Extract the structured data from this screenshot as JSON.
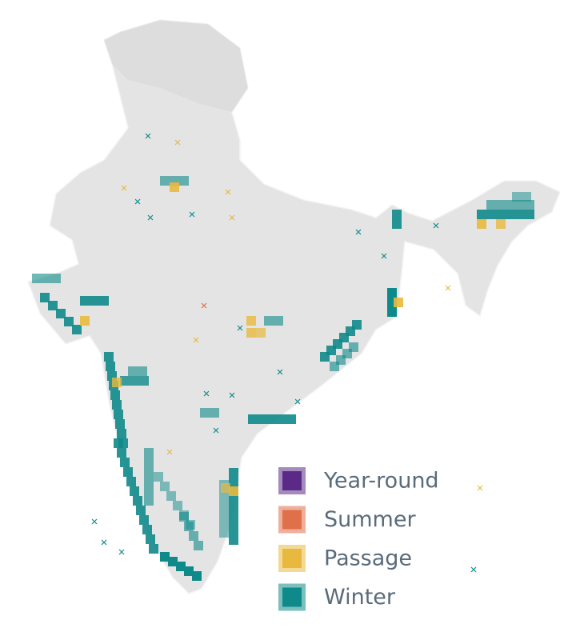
{
  "legend": {
    "items": [
      {
        "label": "Year-round",
        "color": "#5b2a86"
      },
      {
        "label": "Summer",
        "color": "#e0704a"
      },
      {
        "label": "Passage",
        "color": "#e8b93e"
      },
      {
        "label": "Winter",
        "color": "#0f8a8a"
      }
    ]
  }
}
